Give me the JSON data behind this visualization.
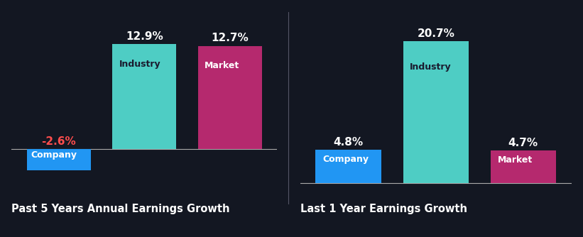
{
  "background_color": "#131722",
  "groups": [
    {
      "title": "Past 5 Years Annual Earnings Growth",
      "bars": [
        {
          "label": "Company",
          "value": -2.6,
          "color": "#2196f3",
          "label_color": "#ffffff",
          "value_color": "#ff4d4d",
          "value_label": "-2.6%"
        },
        {
          "label": "Industry",
          "value": 12.9,
          "color": "#4ecdc4",
          "label_color": "#1a1a2e",
          "value_color": "#ffffff",
          "value_label": "12.9%"
        },
        {
          "label": "Market",
          "value": 12.7,
          "color": "#b5296e",
          "label_color": "#ffffff",
          "value_color": "#ffffff",
          "value_label": "12.7%"
        }
      ],
      "ylim": [
        -5,
        16
      ]
    },
    {
      "title": "Last 1 Year Earnings Growth",
      "bars": [
        {
          "label": "Company",
          "value": 4.8,
          "color": "#2196f3",
          "label_color": "#ffffff",
          "value_color": "#ffffff",
          "value_label": "4.8%"
        },
        {
          "label": "Industry",
          "value": 20.7,
          "color": "#4ecdc4",
          "label_color": "#1a1a2e",
          "value_color": "#ffffff",
          "value_label": "20.7%"
        },
        {
          "label": "Market",
          "value": 4.7,
          "color": "#b5296e",
          "label_color": "#ffffff",
          "value_color": "#ffffff",
          "value_label": "4.7%"
        }
      ],
      "ylim": [
        -1,
        24
      ]
    }
  ],
  "divider_line_color": "#aaaaaa",
  "title_color": "#ffffff",
  "title_fontsize": 10.5,
  "value_fontsize": 11,
  "label_fontsize": 9,
  "bar_width": 0.75
}
